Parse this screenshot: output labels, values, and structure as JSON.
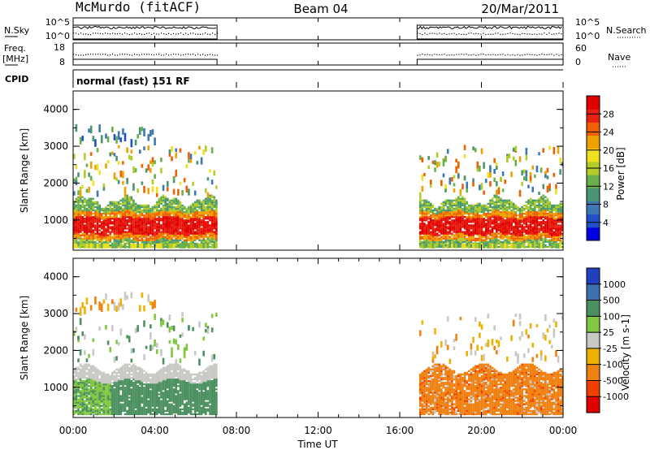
{
  "header": {
    "station": "McMurdo (fitACF)",
    "beam": "Beam 04",
    "date": "20/Mar/2011"
  },
  "noise_panel": {
    "left_label": "N.Sky",
    "left_ticks": [
      "10^5",
      "10^0"
    ],
    "right_ticks": [
      "10^5",
      "10^0"
    ],
    "right_label": "N.Search"
  },
  "freq_panel": {
    "left_label_1": "Freq.",
    "left_label_2": "[MHz]",
    "left_ticks": [
      "18",
      "8"
    ],
    "right_ticks": [
      "60",
      "0"
    ],
    "right_label": "Nave"
  },
  "cpid_panel": {
    "label": "CPID",
    "mode_text": "normal (fast) 151 RF"
  },
  "x_axis": {
    "ticks": [
      "00:00",
      "04:00",
      "08:00",
      "12:00",
      "16:00",
      "20:00",
      "00:00"
    ],
    "label": "Time UT"
  },
  "colors": {
    "power_scale": [
      "#0000e0",
      "#2050c8",
      "#3c78b4",
      "#4a9672",
      "#6ab04a",
      "#b4cc2a",
      "#f0e020",
      "#f0a000",
      "#f06000",
      "#e82010",
      "#e00000"
    ],
    "velocity_scale": [
      "#e00000",
      "#f04000",
      "#f08010",
      "#f0b000",
      "#c8c8c4",
      "#80c840",
      "#4c9060",
      "#3c70b0",
      "#2040c0"
    ]
  },
  "chart_data": [
    {
      "type": "heatmap",
      "title": "",
      "xlabel": "",
      "ylabel": "Slant Range [km]",
      "xlim": [
        0,
        24
      ],
      "ylim": [
        180,
        4500
      ],
      "yticks": [
        "1000",
        "2000",
        "3000",
        "4000"
      ],
      "colorbar_label": "Power [dB]",
      "colorbar_ticks": [
        "28",
        "24",
        "20",
        "16",
        "12",
        "8",
        "4"
      ],
      "data_segments": [
        {
          "start": 0.0,
          "end": 7.05
        },
        {
          "start": 16.85,
          "end": 24.0
        }
      ]
    },
    {
      "type": "heatmap",
      "title": "",
      "xlabel": "Time UT",
      "ylabel": "Slant Range [km]",
      "xlim": [
        0,
        24
      ],
      "ylim": [
        180,
        4500
      ],
      "yticks": [
        "1000",
        "2000",
        "3000",
        "4000"
      ],
      "colorbar_label": "Velocity [m s-1]",
      "colorbar_ticks": [
        "1000",
        "500",
        "100",
        "25",
        "-25",
        "-100",
        "-500",
        "-1000"
      ],
      "data_segments": [
        {
          "start": 0.0,
          "end": 7.05
        },
        {
          "start": 16.85,
          "end": 24.0
        }
      ]
    }
  ]
}
